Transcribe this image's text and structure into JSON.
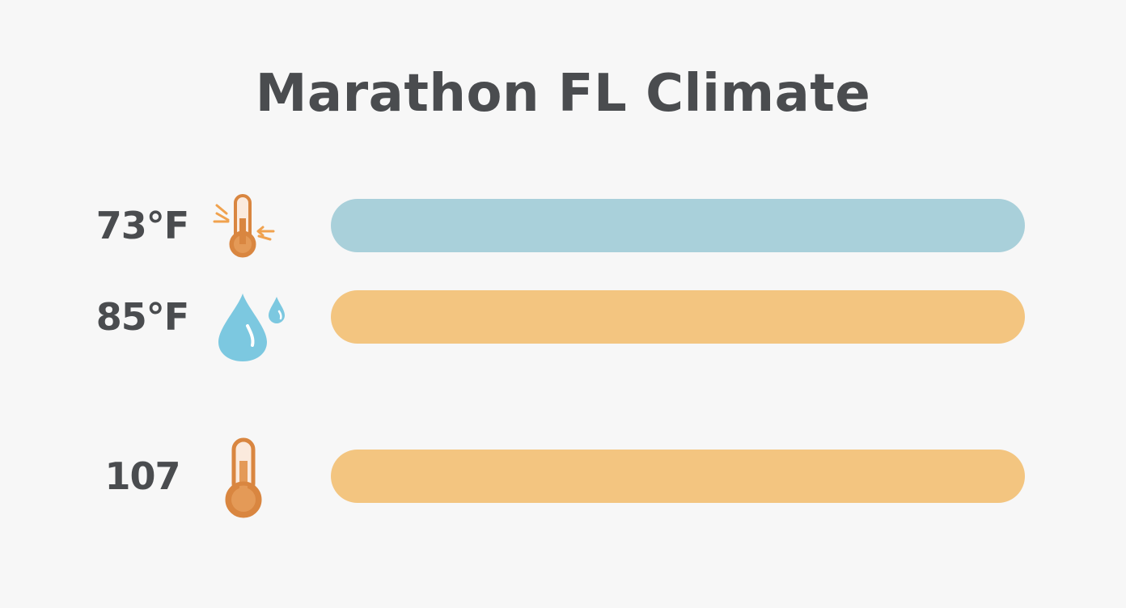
{
  "title": "Marathon FL Climate",
  "rows": [
    {
      "value": "73°F",
      "icon": "thermometer-mild-icon",
      "bar_color": "#a9d0da"
    },
    {
      "value": "85°F",
      "icon": "water-drops-icon",
      "bar_color": "#f3c580"
    },
    {
      "value": "107",
      "icon": "thermometer-hot-icon",
      "bar_color": "#f3c580"
    }
  ],
  "colors": {
    "background": "#f7f7f7",
    "text": "#4a4c4f",
    "thermometer": "#d98640",
    "drop": "#7cc8e0"
  }
}
